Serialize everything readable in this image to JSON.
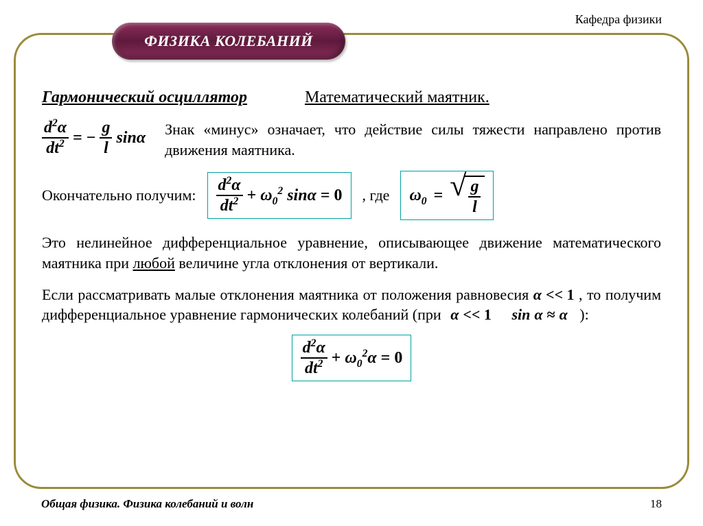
{
  "header": {
    "dept": "Кафедра физики"
  },
  "title": "ФИЗИКА КОЛЕБАНИЙ",
  "subtitles": {
    "left": "Гармонический осциллятор",
    "right": "Математический маятник."
  },
  "text": {
    "p1": "Знак «минус» означает, что действие силы тяжести направлено против движения маятника.",
    "p2a": "Окончательно получим:",
    "p2b": ",   где",
    "p3a": "Это нелинейное дифференциальное уравнение, описывающее движение математического маятника при ",
    "p3b": "любой",
    "p3c": " величине угла отклонения от вертикали.",
    "p4a": "Если рассматривать малые отклонения маятника от положения равновесия ",
    "p4b": " , то получим дифференциальное уравнение гармонических колебаний (при ",
    "p4c": "):"
  },
  "formulas": {
    "alpha": "α",
    "omega": "ω",
    "sin": "sin",
    "approx": "≈",
    "muchless": "<< 1",
    "eq0": "= 0",
    "minus": "−",
    "plus": "+",
    "eq": "=",
    "d2a_num": "d ²α",
    "d2a_den": "dt²",
    "g": "g",
    "l": "l",
    "omega0sq": "ω₀²",
    "omega0": "ω₀"
  },
  "footer": {
    "left": "Общая физика. Физика колебаний и волн",
    "page": "18"
  },
  "colors": {
    "frame": "#9a8b3a",
    "badge_grad_top": "#8b2d5a",
    "badge_grad_mid": "#5e1a3c",
    "box_border": "#00a0a0",
    "text": "#000000",
    "bg": "#ffffff"
  }
}
